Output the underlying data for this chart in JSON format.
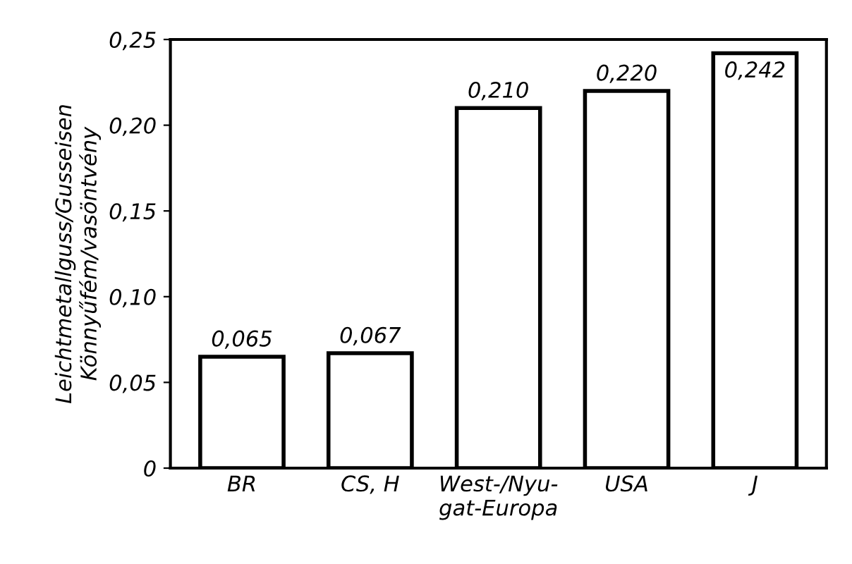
{
  "chart_data": {
    "type": "bar",
    "ylabel": "Leichtmetallguss/Gusseisen\nKönnyűfém/vasöntvény",
    "categories": [
      "BR",
      "CS, H",
      "West-/Nyu-\ngat-Europa",
      "USA",
      "J"
    ],
    "values": [
      0.065,
      0.067,
      0.21,
      0.22,
      0.242
    ],
    "value_labels": [
      "0,065",
      "0,067",
      "0,210",
      "0,220",
      "0,242"
    ],
    "color": "#ffffff",
    "ylim": [
      0,
      0.25
    ],
    "yticks": [
      0,
      {
        "value": 0.05,
        "label": "0,05"
      },
      {
        "value": 0.1,
        "label": "0,10"
      },
      {
        "value": 0.15,
        "label": "0,15"
      },
      {
        "value": 0.2,
        "label": "0,20"
      },
      {
        "value": 0.25,
        "label": "0,25"
      }
    ],
    "grid": false,
    "legend": false
  }
}
